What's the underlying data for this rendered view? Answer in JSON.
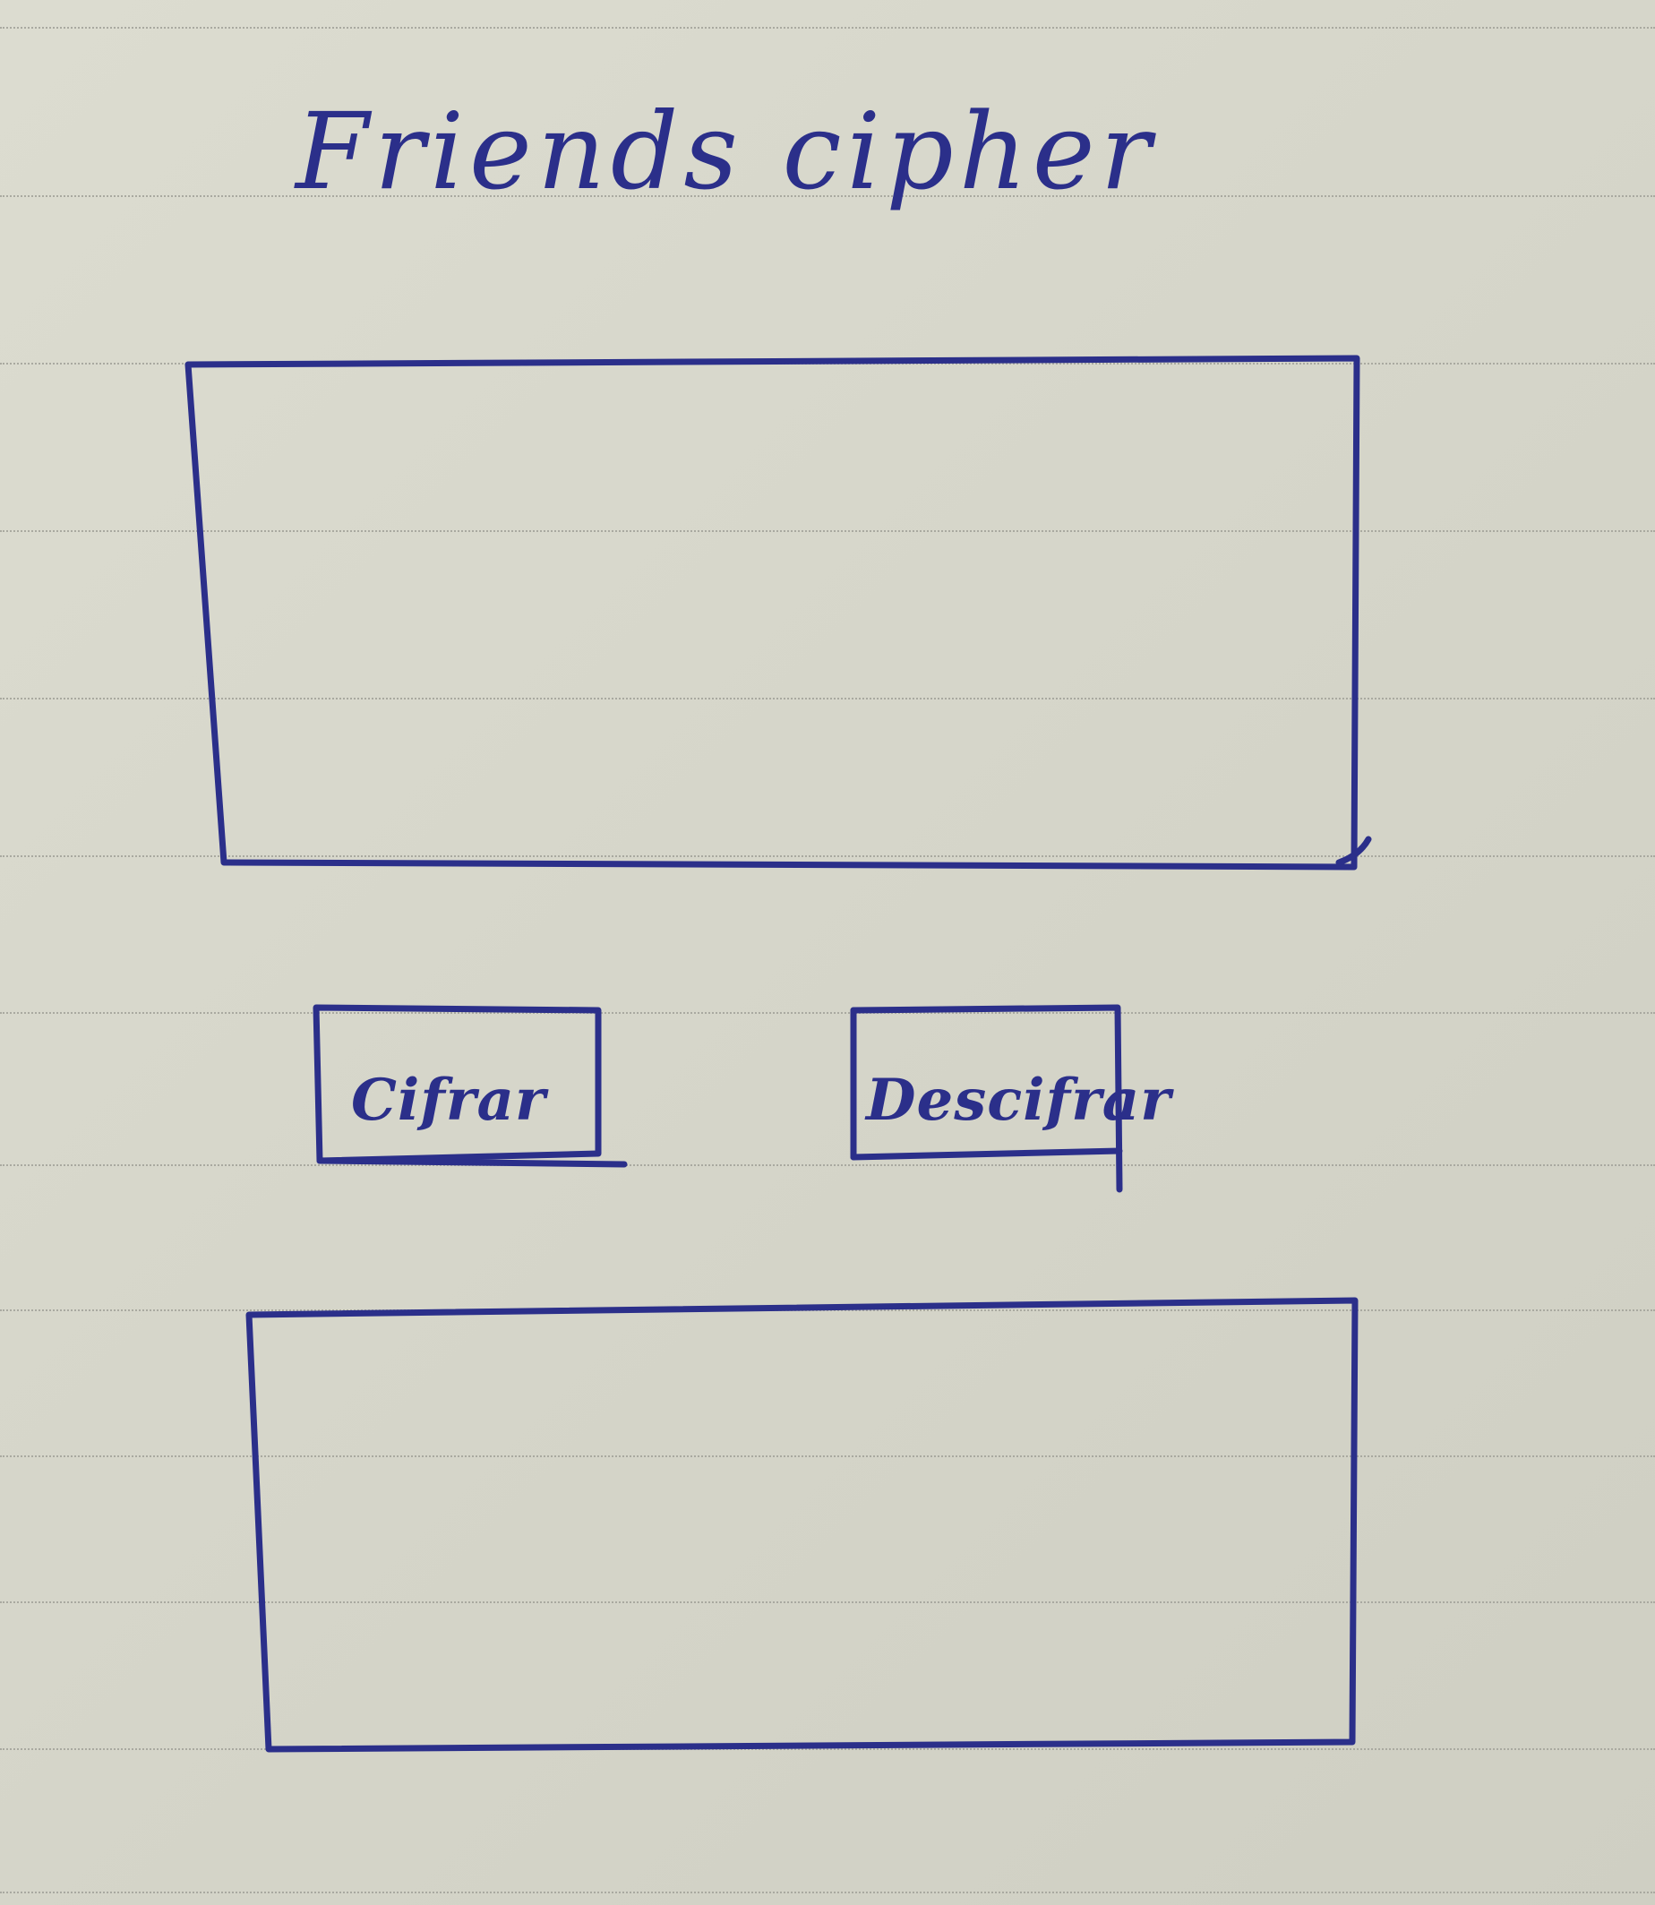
{
  "title": "Friends cipher",
  "buttons": {
    "encrypt_label": "Cifrar",
    "decrypt_label": "Descifrar"
  },
  "ink_color": "#2b2f8a"
}
